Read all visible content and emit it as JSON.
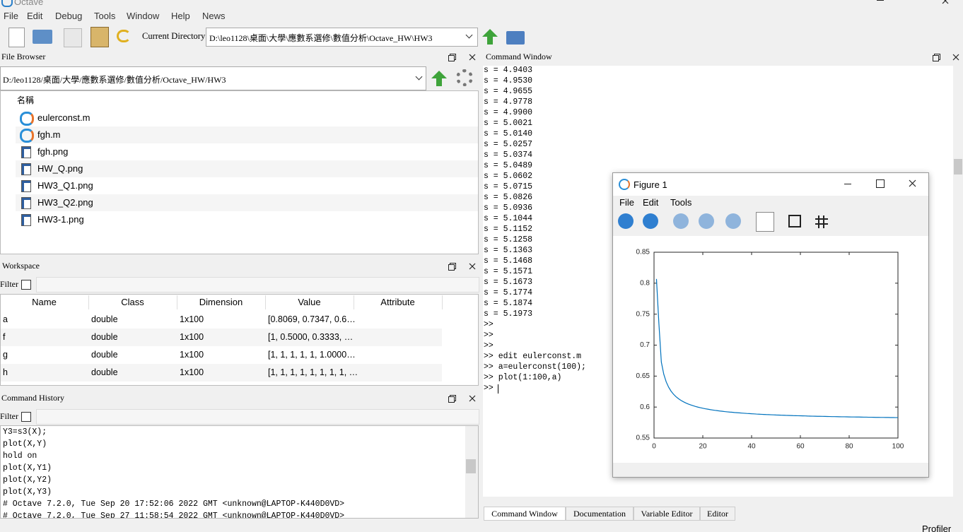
{
  "app_title": "Octave",
  "menu": [
    "File",
    "Edit",
    "Debug",
    "Tools",
    "Window",
    "Help",
    "News"
  ],
  "toolbar": {
    "current_directory_label": "Current Directory:",
    "current_directory": "D:\\leo1128\\桌面\\大學\\應數系選修\\數值分析\\Octave_HW\\HW3"
  },
  "file_browser": {
    "title": "File Browser",
    "path": "D:/leo1128/桌面/大學/應數系選修/數值分析/Octave_HW/HW3",
    "column": "名稱",
    "files": [
      "eulerconst.m",
      "fgh.m",
      "fgh.png",
      "HW_Q.png",
      "HW3_Q1.png",
      "HW3_Q2.png",
      "HW3-1.png"
    ]
  },
  "workspace": {
    "title": "Workspace",
    "filter": "Filter",
    "columns": [
      "Name",
      "Class",
      "Dimension",
      "Value",
      "Attribute"
    ],
    "rows": [
      [
        "a",
        "double",
        "1x100",
        "[0.8069, 0.7347, 0.6…"
      ],
      [
        "f",
        "double",
        "1x100",
        "[1, 0.5000, 0.3333, …"
      ],
      [
        "g",
        "double",
        "1x100",
        "[1, 1, 1, 1, 1, 1.0000…"
      ],
      [
        "h",
        "double",
        "1x100",
        "[1, 1, 1, 1, 1, 1, 1, 1, …"
      ]
    ]
  },
  "command_history": {
    "title": "Command History",
    "filter": "Filter",
    "lines": [
      "Y3=s3(X);",
      "plot(X,Y)",
      "hold on",
      "plot(X,Y1)",
      "plot(X,Y2)",
      "plot(X,Y3)",
      "# Octave 7.2.0, Tue Sep 20 17:52:06 2022 GMT <unknown@LAPTOP-K440D0VD>",
      "# Octave 7.2.0, Tue Sep 27 11:58:54 2022 GMT <unknown@LAPTOP-K440D0VD>"
    ]
  },
  "command_window": {
    "title": "Command Window",
    "lines": [
      "s = 4.9403",
      "s = 4.9530",
      "s = 4.9655",
      "s = 4.9778",
      "s = 4.9900",
      "s = 5.0021",
      "s = 5.0140",
      "s = 5.0257",
      "s = 5.0374",
      "s = 5.0489",
      "s = 5.0602",
      "s = 5.0715",
      "s = 5.0826",
      "s = 5.0936",
      "s = 5.1044",
      "s = 5.1152",
      "s = 5.1258",
      "s = 5.1363",
      "s = 5.1468",
      "s = 5.1571",
      "s = 5.1673",
      "s = 5.1774",
      "s = 5.1874",
      "s = 5.1973",
      ">>",
      ">>",
      ">>",
      ">> edit eulerconst.m",
      ">> a=eulerconst(100);",
      ">> plot(1:100,a)",
      ">>"
    ]
  },
  "figure": {
    "title": "Figure 1",
    "menu": [
      "File",
      "Edit",
      "Tools"
    ]
  },
  "chart_data": {
    "type": "line",
    "color": "#0072bd",
    "x": [
      1,
      2,
      3,
      4,
      5,
      6,
      7,
      8,
      9,
      10,
      11,
      12,
      13,
      14,
      15,
      16,
      17,
      18,
      19,
      20,
      21,
      22,
      23,
      24,
      25,
      26,
      27,
      28,
      29,
      30,
      31,
      32,
      33,
      34,
      35,
      36,
      37,
      38,
      39,
      40,
      41,
      42,
      43,
      44,
      45,
      46,
      47,
      48,
      49,
      50,
      51,
      52,
      53,
      54,
      55,
      56,
      57,
      58,
      59,
      60,
      61,
      62,
      63,
      64,
      65,
      66,
      67,
      68,
      69,
      70,
      71,
      72,
      73,
      74,
      75,
      76,
      77,
      78,
      79,
      80,
      81,
      82,
      83,
      84,
      85,
      86,
      87,
      88,
      89,
      90,
      91,
      92,
      93,
      94,
      95,
      96,
      97,
      98,
      99,
      100
    ],
    "values": [
      0.8069,
      0.7347,
      0.6726,
      0.653,
      0.6406,
      0.632,
      0.6256,
      0.6207,
      0.6168,
      0.6136,
      0.6109,
      0.6087,
      0.6067,
      0.605,
      0.6035,
      0.6022,
      0.601,
      0.5999,
      0.599,
      0.5981,
      0.5973,
      0.5966,
      0.5959,
      0.5953,
      0.5947,
      0.5942,
      0.5936,
      0.5932,
      0.5927,
      0.5923,
      0.5919,
      0.5916,
      0.5912,
      0.5909,
      0.5906,
      0.5903,
      0.59,
      0.5897,
      0.5895,
      0.5892,
      0.589,
      0.5887,
      0.5885,
      0.5883,
      0.5881,
      0.5879,
      0.5878,
      0.5876,
      0.5874,
      0.5872,
      0.5871,
      0.5869,
      0.5868,
      0.5866,
      0.5865,
      0.5864,
      0.5862,
      0.5861,
      0.586,
      0.5859,
      0.5858,
      0.5857,
      0.5855,
      0.5854,
      0.5853,
      0.5852,
      0.5851,
      0.5851,
      0.585,
      0.5849,
      0.5848,
      0.5847,
      0.5846,
      0.5846,
      0.5845,
      0.5844,
      0.5843,
      0.5843,
      0.5842,
      0.5841,
      0.584,
      0.584,
      0.5839,
      0.5839,
      0.5838,
      0.5837,
      0.5837,
      0.5836,
      0.5836,
      0.5835,
      0.5834,
      0.5834,
      0.5833,
      0.5833,
      0.5832,
      0.5832,
      0.5831,
      0.5831,
      0.583,
      0.583
    ],
    "xlim": [
      0,
      100
    ],
    "xticks": [
      0,
      20,
      40,
      60,
      80,
      100
    ],
    "ylim": [
      0.55,
      0.85
    ],
    "yticks": [
      0.55,
      0.6,
      0.65,
      0.7,
      0.75,
      0.8,
      0.85
    ]
  },
  "tabs": [
    "Command Window",
    "Documentation",
    "Variable Editor",
    "Editor"
  ],
  "status": "Profiler"
}
